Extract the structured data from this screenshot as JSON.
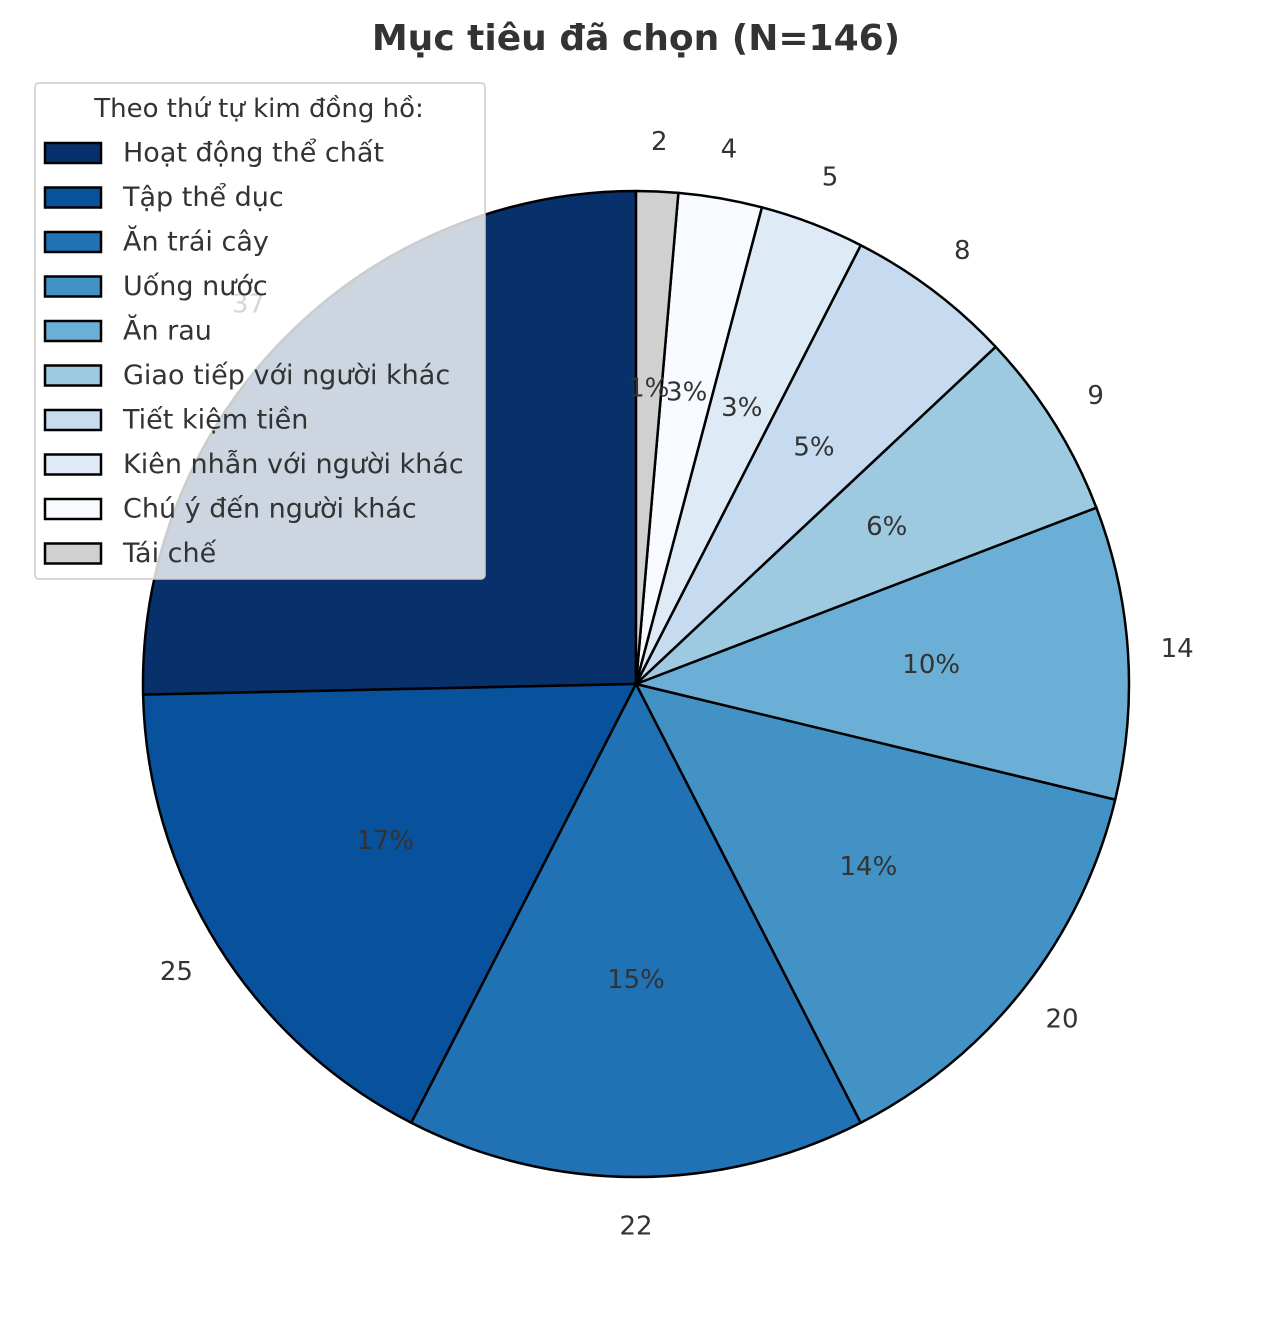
{
  "chart_data": {
    "type": "pie",
    "title": "Mục tiêu đã chọn (N=146)",
    "legend": {
      "title": "Theo thứ tự kim đồng hồ:",
      "placement": "top-left"
    },
    "direction": "clockwise",
    "start_angle": "top",
    "slices": [
      {
        "label": "Hoạt động thể chất",
        "value": 37,
        "percent": "",
        "color": "#08306b"
      },
      {
        "label": "Tập thể dục",
        "value": 25,
        "percent": "17%",
        "color": "#08519c"
      },
      {
        "label": "Ăn trái cây",
        "value": 22,
        "percent": "15%",
        "color": "#2171b5"
      },
      {
        "label": "Uống nước",
        "value": 20,
        "percent": "14%",
        "color": "#4292c6"
      },
      {
        "label": "Ăn rau",
        "value": 14,
        "percent": "10%",
        "color": "#6baed6"
      },
      {
        "label": "Giao tiếp với người khác",
        "value": 9,
        "percent": "6%",
        "color": "#9ecae1"
      },
      {
        "label": "Tiết kiệm tiền",
        "value": 8,
        "percent": "5%",
        "color": "#c6dbef"
      },
      {
        "label": "Kiên nhẫn với người khác",
        "value": 5,
        "percent": "3%",
        "color": "#deebf7"
      },
      {
        "label": "Chú ý đến người khác",
        "value": 4,
        "percent": "3%",
        "color": "#f7fbff"
      },
      {
        "label": "Tái chế",
        "value": 2,
        "percent": "1%",
        "color": "#d0d0d0"
      }
    ],
    "count_labels": [
      "37",
      "25",
      "22",
      "20",
      "14",
      "9",
      "8",
      "5",
      "4",
      "2"
    ]
  }
}
